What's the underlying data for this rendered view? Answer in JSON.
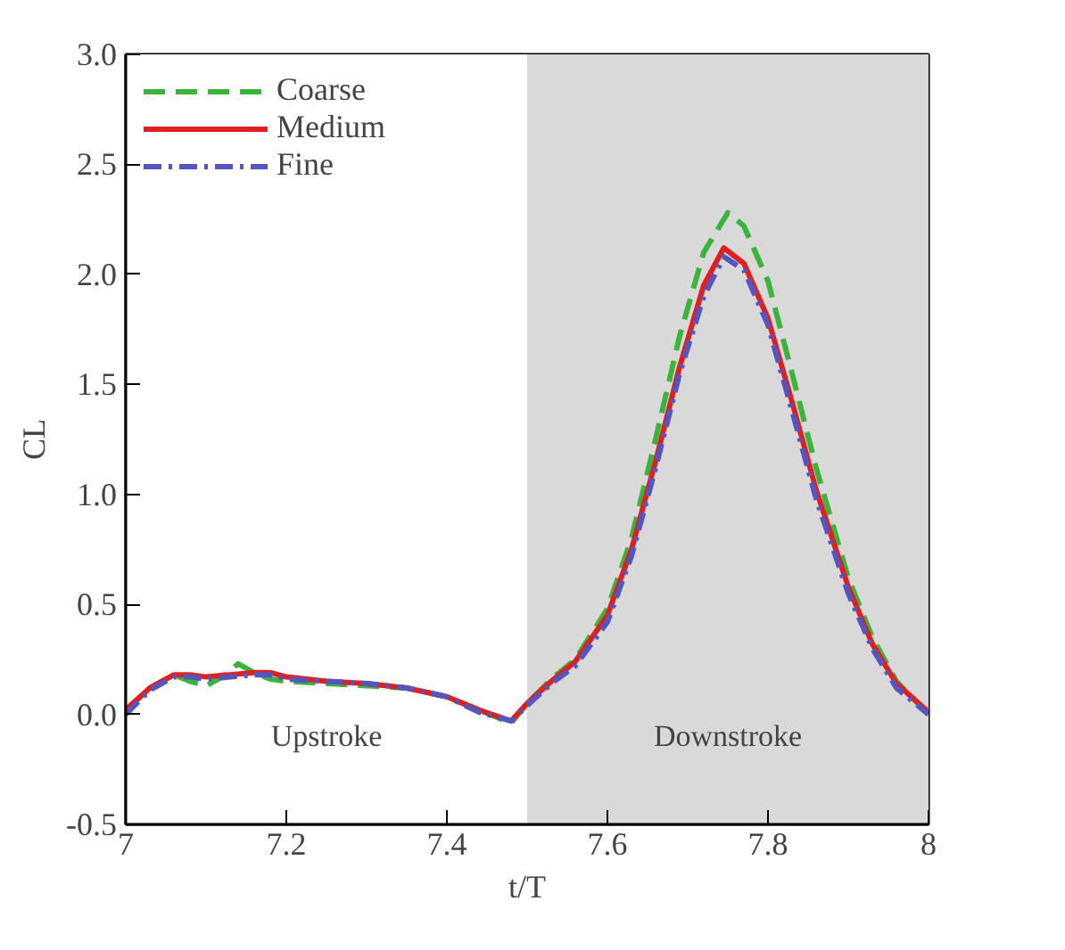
{
  "chart_data": {
    "type": "line",
    "xlabel": "t/T",
    "ylabel": "CL",
    "xlim": [
      7,
      8
    ],
    "ylim": [
      -0.5,
      3.0
    ],
    "xticks": [
      7,
      7.2,
      7.4,
      7.6,
      7.8,
      8
    ],
    "yticks": [
      -0.5,
      {
        "value": 0,
        "label": "0.0"
      },
      0.5,
      {
        "value": 1,
        "label": "1.0"
      },
      1.5,
      {
        "value": 2,
        "label": "2.0"
      },
      2.5,
      {
        "value": 3,
        "label": "3.0"
      }
    ],
    "legend": "top left",
    "bands": [
      {
        "axis": "x",
        "from": 7.0,
        "to": 7.5,
        "label": "Upstroke",
        "color": "#ffffff"
      },
      {
        "axis": "x",
        "from": 7.5,
        "to": 8.0,
        "label": "Downstroke",
        "color": "#d9d9d9"
      }
    ],
    "series": [
      {
        "name": "Coarse",
        "color": "#3cb43c",
        "line_style": "dashed",
        "x": [
          7.0,
          7.03,
          7.06,
          7.08,
          7.1,
          7.12,
          7.14,
          7.16,
          7.18,
          7.2,
          7.25,
          7.3,
          7.35,
          7.4,
          7.44,
          7.48,
          7.5,
          7.53,
          7.56,
          7.6,
          7.63,
          7.66,
          7.69,
          7.72,
          7.75,
          7.77,
          7.8,
          7.83,
          7.86,
          7.9,
          7.93,
          7.96,
          8.0
        ],
        "values": [
          0.02,
          0.12,
          0.18,
          0.15,
          0.13,
          0.17,
          0.23,
          0.19,
          0.16,
          0.15,
          0.14,
          0.13,
          0.12,
          0.08,
          0.02,
          -0.04,
          0.05,
          0.16,
          0.25,
          0.48,
          0.8,
          1.25,
          1.72,
          2.1,
          2.28,
          2.22,
          1.97,
          1.55,
          1.12,
          0.62,
          0.35,
          0.15,
          0.0
        ]
      },
      {
        "name": "Medium",
        "color": "#e02020",
        "line_style": "solid",
        "x": [
          7.0,
          7.03,
          7.06,
          7.08,
          7.1,
          7.13,
          7.16,
          7.18,
          7.2,
          7.25,
          7.3,
          7.35,
          7.4,
          7.44,
          7.48,
          7.5,
          7.53,
          7.56,
          7.6,
          7.63,
          7.66,
          7.69,
          7.72,
          7.745,
          7.77,
          7.8,
          7.83,
          7.86,
          7.9,
          7.93,
          7.96,
          8.0
        ],
        "values": [
          0.02,
          0.12,
          0.18,
          0.18,
          0.17,
          0.18,
          0.19,
          0.19,
          0.17,
          0.15,
          0.14,
          0.12,
          0.08,
          0.02,
          -0.03,
          0.05,
          0.15,
          0.24,
          0.45,
          0.75,
          1.15,
          1.58,
          1.95,
          2.12,
          2.05,
          1.8,
          1.42,
          1.02,
          0.58,
          0.32,
          0.14,
          0.01
        ]
      },
      {
        "name": "Fine",
        "color": "#5555c0",
        "line_style": "dashdot",
        "x": [
          7.0,
          7.03,
          7.06,
          7.08,
          7.1,
          7.13,
          7.16,
          7.18,
          7.2,
          7.25,
          7.3,
          7.35,
          7.4,
          7.44,
          7.48,
          7.5,
          7.53,
          7.56,
          7.6,
          7.63,
          7.66,
          7.69,
          7.72,
          7.745,
          7.77,
          7.8,
          7.83,
          7.86,
          7.9,
          7.93,
          7.96,
          8.0
        ],
        "values": [
          0.0,
          0.11,
          0.17,
          0.17,
          0.16,
          0.17,
          0.18,
          0.18,
          0.16,
          0.15,
          0.14,
          0.12,
          0.08,
          0.01,
          -0.03,
          0.04,
          0.14,
          0.22,
          0.42,
          0.72,
          1.12,
          1.55,
          1.9,
          2.08,
          2.02,
          1.77,
          1.38,
          0.98,
          0.55,
          0.3,
          0.12,
          0.0
        ]
      }
    ]
  }
}
